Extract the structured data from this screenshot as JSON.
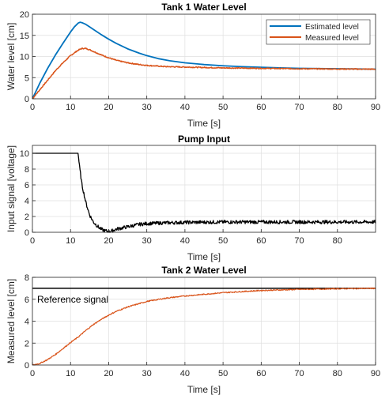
{
  "chart_data": [
    {
      "type": "line",
      "title": "Tank 1 Water Level",
      "xlabel": "Time [s]",
      "ylabel": "Water level [cm]",
      "xlim": [
        0,
        90
      ],
      "ylim": [
        0,
        20
      ],
      "xticks": [
        0,
        10,
        20,
        30,
        40,
        50,
        60,
        70,
        80,
        90
      ],
      "yticks": [
        0,
        5,
        10,
        15,
        20
      ],
      "grid": true,
      "legend_position": "top-right",
      "series": [
        {
          "name": "Estimated level",
          "color": "#0072BD",
          "x": [
            0,
            2,
            4,
            6,
            8,
            10,
            11,
            12,
            12.5,
            13,
            14,
            15,
            16,
            18,
            20,
            22,
            25,
            28,
            30,
            33,
            36,
            40,
            45,
            50,
            55,
            60,
            65,
            70,
            75,
            80,
            85,
            90
          ],
          "y": [
            0,
            3.8,
            7.2,
            10.3,
            13.1,
            15.8,
            17.0,
            17.9,
            18.1,
            18.0,
            17.6,
            17.0,
            16.4,
            15.2,
            14.1,
            13.1,
            11.8,
            10.8,
            10.2,
            9.5,
            9.0,
            8.5,
            8.1,
            7.8,
            7.6,
            7.45,
            7.3,
            7.2,
            7.15,
            7.1,
            7.05,
            7.0
          ]
        },
        {
          "name": "Measured level",
          "color": "#D95319",
          "x": [
            0,
            2,
            4,
            6,
            8,
            10,
            12,
            13,
            14,
            15,
            16,
            18,
            20,
            22,
            25,
            28,
            30,
            35,
            40,
            45,
            50,
            60,
            70,
            80,
            90
          ],
          "y": [
            0,
            2.2,
            4.4,
            6.6,
            8.5,
            10.2,
            11.5,
            11.9,
            11.9,
            11.6,
            11.2,
            10.4,
            9.7,
            9.1,
            8.5,
            8.1,
            7.9,
            7.6,
            7.5,
            7.4,
            7.3,
            7.2,
            7.1,
            7.05,
            7.0
          ]
        }
      ]
    },
    {
      "type": "line",
      "title": "Pump Input",
      "xlabel": "Time [s]",
      "ylabel": "Input signal [voltage]",
      "xlim": [
        0,
        90
      ],
      "ylim": [
        0,
        11
      ],
      "xticks": [
        0,
        10,
        20,
        30,
        40,
        50,
        60,
        70,
        80
      ],
      "yticks": [
        0,
        2,
        4,
        6,
        8,
        10
      ],
      "grid": true,
      "series": [
        {
          "name": "Pump input",
          "color": "#000000",
          "x": [
            0,
            12,
            12.3,
            13,
            14,
            15,
            16,
            17,
            18,
            19,
            20,
            21,
            22,
            24,
            26,
            28,
            30,
            35,
            40,
            50,
            60,
            70,
            80,
            90
          ],
          "y": [
            10,
            10,
            8.5,
            6.0,
            3.8,
            2.2,
            1.3,
            0.8,
            0.4,
            0.2,
            0.1,
            0.2,
            0.4,
            0.6,
            0.8,
            1.0,
            1.1,
            1.2,
            1.25,
            1.3,
            1.3,
            1.3,
            1.3,
            1.3
          ]
        }
      ]
    },
    {
      "type": "line",
      "title": "Tank 2 Water Level",
      "xlabel": "Time [s]",
      "ylabel": "Measured level [cm]",
      "xlim": [
        0,
        90
      ],
      "ylim": [
        0,
        8
      ],
      "xticks": [
        0,
        10,
        20,
        30,
        40,
        50,
        60,
        70,
        80,
        90
      ],
      "yticks": [
        0,
        2,
        4,
        6,
        8
      ],
      "grid": true,
      "annotation": "Reference signal",
      "series": [
        {
          "name": "Reference signal",
          "color": "#000000",
          "x": [
            0,
            90
          ],
          "y": [
            7,
            7
          ]
        },
        {
          "name": "Measured level",
          "color": "#D95319",
          "x": [
            0,
            2,
            4,
            6,
            8,
            10,
            12,
            14,
            16,
            18,
            20,
            22,
            25,
            28,
            30,
            35,
            40,
            45,
            50,
            55,
            60,
            65,
            70,
            75,
            80,
            85,
            90
          ],
          "y": [
            0,
            0.15,
            0.5,
            0.95,
            1.5,
            2.05,
            2.55,
            3.15,
            3.7,
            4.15,
            4.55,
            4.9,
            5.3,
            5.6,
            5.8,
            6.1,
            6.3,
            6.45,
            6.6,
            6.7,
            6.8,
            6.85,
            6.9,
            6.93,
            6.96,
            6.98,
            7.0
          ]
        }
      ]
    }
  ]
}
